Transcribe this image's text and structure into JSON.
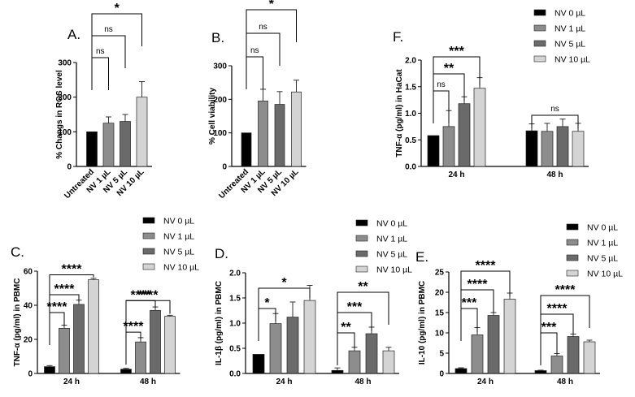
{
  "colors": {
    "NV 0 µL": "#000000",
    "NV 1 µL": "#8d8d8d",
    "NV 5 µL": "#6a6a6a",
    "NV 10 µL": "#d4d4d4",
    "Untreated": "#000000"
  },
  "legend_entries": [
    "NV 0 µL",
    "NV 1 µL",
    "NV 5 µL",
    "NV 10 µL"
  ],
  "chart_data": [
    {
      "id": "A",
      "panel_label": "A.",
      "type": "bar",
      "ylabel": "% Changs in ROS level",
      "ylim": [
        0,
        300
      ],
      "yticks": [
        "0",
        "100",
        "200",
        "300"
      ],
      "categories": [
        "Untreated",
        "NV 1 µL",
        "NV 5 µL",
        "NV 10 µL"
      ],
      "values": [
        100,
        125,
        130,
        200
      ],
      "errors": [
        0,
        18,
        20,
        45
      ],
      "annotations": [
        {
          "from": 0,
          "to": 1,
          "label": "ns",
          "level": 0
        },
        {
          "from": 0,
          "to": 2,
          "label": "ns",
          "level": 1
        },
        {
          "from": 0,
          "to": 3,
          "label": "*",
          "level": 2
        }
      ]
    },
    {
      "id": "B",
      "panel_label": "B.",
      "type": "bar",
      "ylabel": "% Cell viability",
      "ylim": [
        0,
        300
      ],
      "yticks": [
        "0",
        "100",
        "200",
        "300"
      ],
      "categories": [
        "Untreated",
        "NV 1 µL",
        "NV 5 µL",
        "NV 10 µL"
      ],
      "values": [
        100,
        195,
        185,
        222
      ],
      "errors": [
        0,
        35,
        38,
        35
      ],
      "annotations": [
        {
          "from": 0,
          "to": 1,
          "label": "ns",
          "level": 0
        },
        {
          "from": 0,
          "to": 2,
          "label": "ns",
          "level": 1
        },
        {
          "from": 0,
          "to": 3,
          "label": "*",
          "level": 2
        }
      ]
    },
    {
      "id": "F",
      "panel_label": "F.",
      "type": "bar",
      "ylabel": "TNF-α (pg/ml) in HaCat",
      "ylim": [
        0,
        2.0
      ],
      "yticks": [
        "0.0",
        "0.5",
        "1.0",
        "1.5",
        "2.0"
      ],
      "groups": [
        "24 h",
        "48 h"
      ],
      "series": [
        {
          "name": "NV 0 µL",
          "values": [
            0.58,
            0.67
          ],
          "errors": [
            0,
            0.13
          ]
        },
        {
          "name": "NV 1 µL",
          "values": [
            0.75,
            0.66
          ],
          "errors": [
            0.3,
            0.15
          ]
        },
        {
          "name": "NV 5 µL",
          "values": [
            1.18,
            0.75
          ],
          "errors": [
            0.13,
            0.14
          ]
        },
        {
          "name": "NV 10 µL",
          "values": [
            1.47,
            0.66
          ],
          "errors": [
            0.2,
            0.15
          ]
        }
      ],
      "annotations": [
        {
          "group": 0,
          "from": 0,
          "to": 1,
          "label": "ns",
          "level": 0
        },
        {
          "group": 0,
          "from": 0,
          "to": 2,
          "label": "**",
          "level": 1
        },
        {
          "group": 0,
          "from": 0,
          "to": 3,
          "label": "***",
          "level": 2
        },
        {
          "group": 1,
          "from": 0,
          "to": 3,
          "label": "ns",
          "level": 0
        }
      ]
    },
    {
      "id": "C",
      "panel_label": "C.",
      "type": "bar",
      "ylabel": "TNF-α (pg/ml) in PBMC",
      "ylim": [
        0,
        60
      ],
      "yticks": [
        "0",
        "20",
        "40",
        "60"
      ],
      "groups": [
        "24 h",
        "48 h"
      ],
      "series": [
        {
          "name": "NV 0 µL",
          "values": [
            4,
            2.5
          ],
          "errors": [
            0.6,
            0.5
          ]
        },
        {
          "name": "NV 1 µL",
          "values": [
            26.5,
            18.5
          ],
          "errors": [
            1.8,
            2.5
          ]
        },
        {
          "name": "NV 5 µL",
          "values": [
            40.5,
            37
          ],
          "errors": [
            2.5,
            2
          ]
        },
        {
          "name": "NV 10 µL",
          "values": [
            55,
            33.5
          ],
          "errors": [
            0.8,
            0.6
          ]
        }
      ],
      "annotations": [
        {
          "group": 0,
          "from": 0,
          "to": 1,
          "label": "****",
          "level": 0
        },
        {
          "group": 0,
          "from": 0,
          "to": 2,
          "label": "****",
          "level": 1
        },
        {
          "group": 0,
          "from": 0,
          "to": 3,
          "label": "****",
          "level": 2
        },
        {
          "group": 1,
          "from": 0,
          "to": 1,
          "label": "****",
          "level": 0
        },
        {
          "group": 1,
          "from": 0,
          "to": 2,
          "label": "****",
          "level": 1
        },
        {
          "group": 1,
          "from": 0,
          "to": 3,
          "label": "****",
          "level": 2
        }
      ]
    },
    {
      "id": "D",
      "panel_label": "D.",
      "type": "bar",
      "ylabel": "IL-1β (pg/ml) in PBMC",
      "ylim": [
        0,
        2.0
      ],
      "yticks": [
        "0.0",
        "0.5",
        "1.0",
        "1.5",
        "2.0"
      ],
      "groups": [
        "24 h",
        "48 h"
      ],
      "series": [
        {
          "name": "NV 0 µL",
          "values": [
            0.38,
            0.06
          ],
          "errors": [
            0,
            0.05
          ]
        },
        {
          "name": "NV 1 µL",
          "values": [
            0.99,
            0.45
          ],
          "errors": [
            0.2,
            0.07
          ]
        },
        {
          "name": "NV 5 µL",
          "values": [
            1.12,
            0.79
          ],
          "errors": [
            0.3,
            0.13
          ]
        },
        {
          "name": "NV 10 µL",
          "values": [
            1.45,
            0.45
          ],
          "errors": [
            0.3,
            0.07
          ]
        }
      ],
      "annotations": [
        {
          "group": 0,
          "from": 0,
          "to": 1,
          "label": "*",
          "level": 0
        },
        {
          "group": 0,
          "from": 0,
          "to": 3,
          "label": "*",
          "level": 1
        },
        {
          "group": 1,
          "from": 0,
          "to": 1,
          "label": "**",
          "level": 0
        },
        {
          "group": 1,
          "from": 0,
          "to": 2,
          "label": "***",
          "level": 1
        },
        {
          "group": 1,
          "from": 0,
          "to": 3,
          "label": "**",
          "level": 2
        }
      ]
    },
    {
      "id": "E",
      "panel_label": "E.",
      "type": "bar",
      "ylabel": "IL-10 (pg/ml) in PBMC",
      "ylim": [
        0,
        25
      ],
      "yticks": [
        "0",
        "5",
        "10",
        "15",
        "20",
        "25"
      ],
      "groups": [
        "24 h",
        "48 h"
      ],
      "series": [
        {
          "name": "NV 0 µL",
          "values": [
            1.2,
            0.7
          ],
          "errors": [
            0.2,
            0.1
          ]
        },
        {
          "name": "NV 1 µL",
          "values": [
            9.5,
            4.3
          ],
          "errors": [
            1.8,
            0.6
          ]
        },
        {
          "name": "NV 5 µL",
          "values": [
            14.3,
            9.1
          ],
          "errors": [
            0.7,
            0.6
          ]
        },
        {
          "name": "NV 10 µL",
          "values": [
            18.3,
            7.8
          ],
          "errors": [
            1.5,
            0.4
          ]
        }
      ],
      "annotations": [
        {
          "group": 0,
          "from": 0,
          "to": 1,
          "label": "***",
          "level": 0
        },
        {
          "group": 0,
          "from": 0,
          "to": 2,
          "label": "****",
          "level": 1
        },
        {
          "group": 0,
          "from": 0,
          "to": 3,
          "label": "****",
          "level": 2
        },
        {
          "group": 1,
          "from": 0,
          "to": 1,
          "label": "***",
          "level": 0
        },
        {
          "group": 1,
          "from": 0,
          "to": 2,
          "label": "****",
          "level": 1
        },
        {
          "group": 1,
          "from": 0,
          "to": 3,
          "label": "****",
          "level": 2
        }
      ]
    }
  ]
}
